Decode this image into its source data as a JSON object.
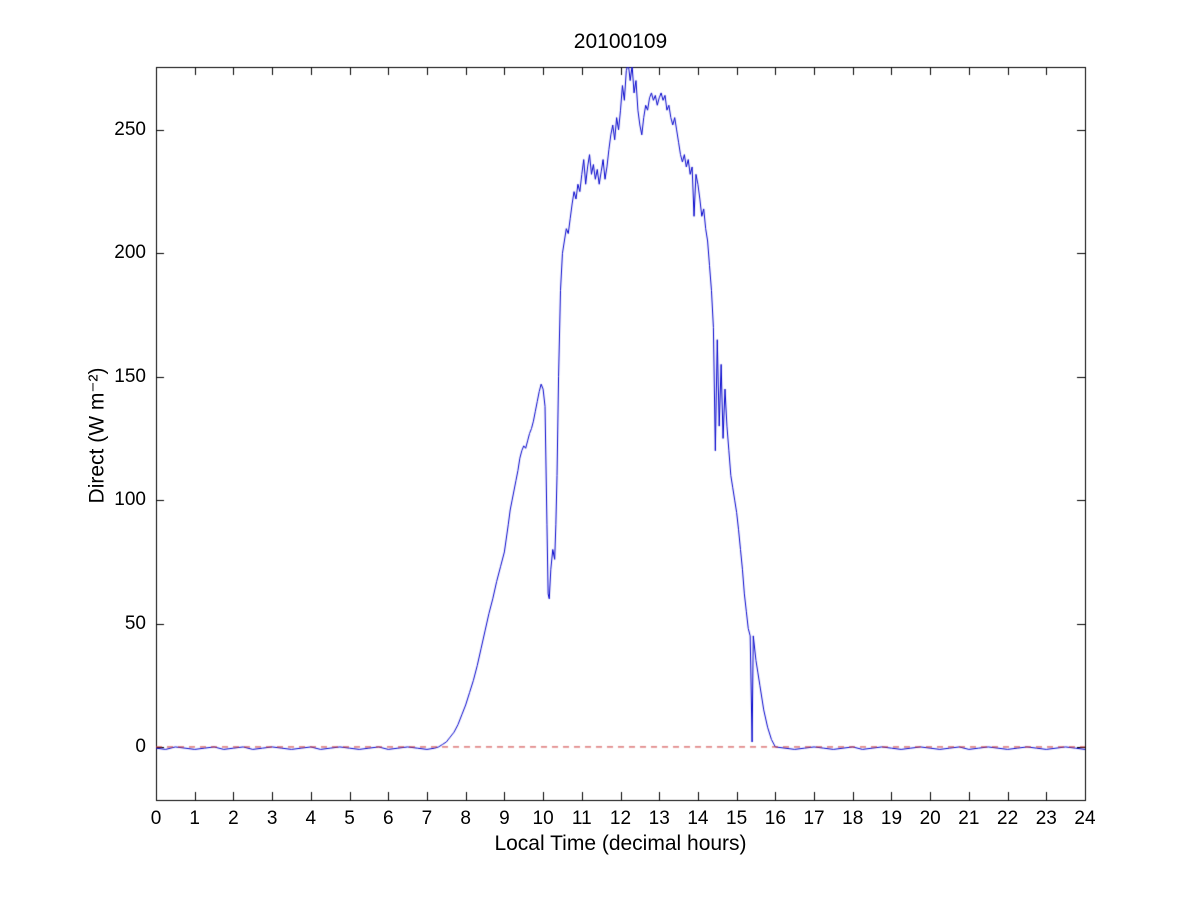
{
  "figure": {
    "background": "#ffffff"
  },
  "chart_data": {
    "type": "line",
    "title": "20100109",
    "xlabel": "Local Time (decimal hours)",
    "ylabel": "Direct (W m⁻²)",
    "xlim": [
      0,
      24
    ],
    "ylim": [
      -21.5,
      275.5
    ],
    "xticks": [
      0,
      1,
      2,
      3,
      4,
      5,
      6,
      7,
      8,
      9,
      10,
      11,
      12,
      13,
      14,
      15,
      16,
      17,
      18,
      19,
      20,
      21,
      22,
      23,
      24
    ],
    "yticks": [
      0,
      50,
      100,
      150,
      200,
      250
    ],
    "grid": false,
    "legend": null,
    "axis_color": "#000000",
    "tick_length": 8,
    "series": [
      {
        "name": "direct-irradiance",
        "color": "#0000cc",
        "width": 1,
        "style": "solid",
        "points": [
          [
            0,
            -0.5
          ],
          [
            0.25,
            -1
          ],
          [
            0.5,
            0
          ],
          [
            0.75,
            -0.5
          ],
          [
            1,
            -1
          ],
          [
            1.25,
            -0.5
          ],
          [
            1.5,
            0
          ],
          [
            1.75,
            -1
          ],
          [
            2,
            -0.5
          ],
          [
            2.25,
            0
          ],
          [
            2.5,
            -1
          ],
          [
            2.75,
            -0.5
          ],
          [
            3,
            0
          ],
          [
            3.25,
            -0.5
          ],
          [
            3.5,
            -1
          ],
          [
            3.75,
            -0.5
          ],
          [
            4,
            0
          ],
          [
            4.25,
            -1
          ],
          [
            4.5,
            -0.5
          ],
          [
            4.75,
            0
          ],
          [
            5,
            -0.5
          ],
          [
            5.25,
            -1
          ],
          [
            5.5,
            -0.5
          ],
          [
            5.75,
            0
          ],
          [
            6,
            -1
          ],
          [
            6.25,
            -0.5
          ],
          [
            6.5,
            0
          ],
          [
            6.75,
            -0.5
          ],
          [
            7,
            -1
          ],
          [
            7.2,
            -0.5
          ],
          [
            7.3,
            0
          ],
          [
            7.4,
            1
          ],
          [
            7.5,
            2
          ],
          [
            7.6,
            4
          ],
          [
            7.7,
            6
          ],
          [
            7.8,
            9
          ],
          [
            7.9,
            13
          ],
          [
            8,
            17
          ],
          [
            8.1,
            22
          ],
          [
            8.2,
            27
          ],
          [
            8.3,
            33
          ],
          [
            8.4,
            40
          ],
          [
            8.5,
            47
          ],
          [
            8.6,
            54
          ],
          [
            8.7,
            60
          ],
          [
            8.8,
            67
          ],
          [
            8.9,
            73
          ],
          [
            9,
            79
          ],
          [
            9.1,
            90
          ],
          [
            9.15,
            96
          ],
          [
            9.2,
            100
          ],
          [
            9.3,
            108
          ],
          [
            9.35,
            112
          ],
          [
            9.4,
            117
          ],
          [
            9.45,
            120
          ],
          [
            9.5,
            122
          ],
          [
            9.55,
            121
          ],
          [
            9.6,
            124
          ],
          [
            9.65,
            127
          ],
          [
            9.7,
            129
          ],
          [
            9.75,
            132
          ],
          [
            9.8,
            136
          ],
          [
            9.85,
            140
          ],
          [
            9.9,
            144
          ],
          [
            9.95,
            147
          ],
          [
            10,
            145
          ],
          [
            10.05,
            138
          ],
          [
            10.1,
            90
          ],
          [
            10.13,
            62
          ],
          [
            10.16,
            60
          ],
          [
            10.2,
            72
          ],
          [
            10.25,
            80
          ],
          [
            10.3,
            76
          ],
          [
            10.33,
            90
          ],
          [
            10.36,
            110
          ],
          [
            10.4,
            150
          ],
          [
            10.45,
            185
          ],
          [
            10.5,
            200
          ],
          [
            10.55,
            205
          ],
          [
            10.6,
            210
          ],
          [
            10.65,
            208
          ],
          [
            10.7,
            214
          ],
          [
            10.75,
            220
          ],
          [
            10.8,
            225
          ],
          [
            10.85,
            222
          ],
          [
            10.9,
            228
          ],
          [
            10.95,
            225
          ],
          [
            11,
            232
          ],
          [
            11.05,
            238
          ],
          [
            11.1,
            228
          ],
          [
            11.15,
            235
          ],
          [
            11.2,
            240
          ],
          [
            11.25,
            232
          ],
          [
            11.3,
            236
          ],
          [
            11.35,
            230
          ],
          [
            11.4,
            234
          ],
          [
            11.45,
            228
          ],
          [
            11.5,
            233
          ],
          [
            11.55,
            238
          ],
          [
            11.6,
            230
          ],
          [
            11.65,
            235
          ],
          [
            11.7,
            242
          ],
          [
            11.75,
            248
          ],
          [
            11.8,
            252
          ],
          [
            11.85,
            246
          ],
          [
            11.9,
            255
          ],
          [
            11.95,
            250
          ],
          [
            12,
            258
          ],
          [
            12.05,
            268
          ],
          [
            12.1,
            262
          ],
          [
            12.15,
            274
          ],
          [
            12.2,
            277
          ],
          [
            12.25,
            270
          ],
          [
            12.3,
            276
          ],
          [
            12.35,
            265
          ],
          [
            12.4,
            270
          ],
          [
            12.45,
            258
          ],
          [
            12.5,
            252
          ],
          [
            12.55,
            248
          ],
          [
            12.6,
            255
          ],
          [
            12.65,
            260
          ],
          [
            12.7,
            258
          ],
          [
            12.75,
            263
          ],
          [
            12.8,
            265
          ],
          [
            12.85,
            262
          ],
          [
            12.9,
            264
          ],
          [
            12.95,
            260
          ],
          [
            13,
            263
          ],
          [
            13.05,
            265
          ],
          [
            13.1,
            262
          ],
          [
            13.15,
            264
          ],
          [
            13.2,
            258
          ],
          [
            13.25,
            260
          ],
          [
            13.3,
            255
          ],
          [
            13.35,
            252
          ],
          [
            13.4,
            255
          ],
          [
            13.45,
            250
          ],
          [
            13.5,
            245
          ],
          [
            13.55,
            240
          ],
          [
            13.6,
            237
          ],
          [
            13.65,
            240
          ],
          [
            13.7,
            235
          ],
          [
            13.75,
            238
          ],
          [
            13.8,
            232
          ],
          [
            13.85,
            235
          ],
          [
            13.9,
            215
          ],
          [
            13.95,
            232
          ],
          [
            14,
            228
          ],
          [
            14.05,
            222
          ],
          [
            14.1,
            215
          ],
          [
            14.15,
            218
          ],
          [
            14.2,
            210
          ],
          [
            14.25,
            205
          ],
          [
            14.3,
            195
          ],
          [
            14.35,
            185
          ],
          [
            14.4,
            170
          ],
          [
            14.45,
            120
          ],
          [
            14.5,
            165
          ],
          [
            14.55,
            130
          ],
          [
            14.6,
            155
          ],
          [
            14.65,
            125
          ],
          [
            14.7,
            145
          ],
          [
            14.75,
            130
          ],
          [
            14.8,
            120
          ],
          [
            14.85,
            110
          ],
          [
            14.9,
            105
          ],
          [
            14.95,
            100
          ],
          [
            15,
            95
          ],
          [
            15.05,
            88
          ],
          [
            15.1,
            80
          ],
          [
            15.15,
            72
          ],
          [
            15.2,
            62
          ],
          [
            15.25,
            55
          ],
          [
            15.3,
            48
          ],
          [
            15.35,
            45
          ],
          [
            15.4,
            2
          ],
          [
            15.43,
            45
          ],
          [
            15.5,
            35
          ],
          [
            15.55,
            30
          ],
          [
            15.6,
            25
          ],
          [
            15.7,
            15
          ],
          [
            15.8,
            8
          ],
          [
            15.9,
            3
          ],
          [
            16,
            0
          ],
          [
            16.25,
            -0.5
          ],
          [
            16.5,
            -1
          ],
          [
            16.75,
            -0.5
          ],
          [
            17,
            0
          ],
          [
            17.25,
            -0.5
          ],
          [
            17.5,
            -1
          ],
          [
            17.75,
            -0.5
          ],
          [
            18,
            0
          ],
          [
            18.25,
            -1
          ],
          [
            18.5,
            -0.5
          ],
          [
            18.75,
            0
          ],
          [
            19,
            -0.5
          ],
          [
            19.25,
            -1
          ],
          [
            19.5,
            -0.5
          ],
          [
            19.75,
            0
          ],
          [
            20,
            -0.5
          ],
          [
            20.25,
            -1
          ],
          [
            20.5,
            -0.5
          ],
          [
            20.75,
            0
          ],
          [
            21,
            -1
          ],
          [
            21.25,
            -0.5
          ],
          [
            21.5,
            0
          ],
          [
            21.75,
            -0.5
          ],
          [
            22,
            -1
          ],
          [
            22.25,
            -0.5
          ],
          [
            22.5,
            0
          ],
          [
            22.75,
            -0.5
          ],
          [
            23,
            -1
          ],
          [
            23.25,
            -0.5
          ],
          [
            23.5,
            0
          ],
          [
            23.75,
            -0.5
          ],
          [
            24,
            -1
          ]
        ]
      },
      {
        "name": "zero-reference",
        "color": "#cc3333",
        "width": 1,
        "style": "dashed",
        "points": [
          [
            0,
            0
          ],
          [
            24,
            0
          ]
        ]
      }
    ]
  }
}
